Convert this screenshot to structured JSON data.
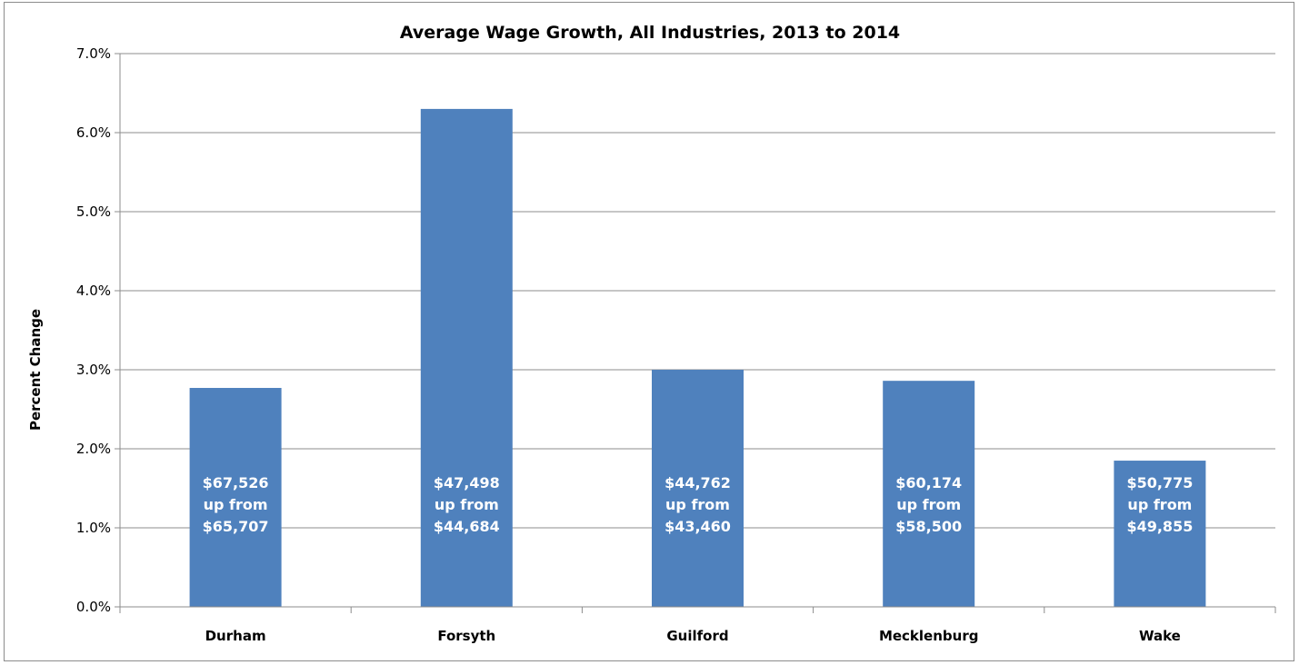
{
  "chart_data": {
    "type": "bar",
    "title": "Average Wage Growth, All Industries, 2013 to 2014",
    "xlabel": "",
    "ylabel": "Percent Change",
    "ylim": [
      0,
      7
    ],
    "yticks": [
      "0.0%",
      "1.0%",
      "2.0%",
      "3.0%",
      "4.0%",
      "5.0%",
      "6.0%",
      "7.0%"
    ],
    "grid": true,
    "legend": "none",
    "bar_color": "#4f81bd",
    "categories": [
      "Durham",
      "Forsyth",
      "Guilford",
      "Mecklenburg",
      "Wake"
    ],
    "values": [
      2.77,
      6.3,
      3.0,
      2.86,
      1.85
    ],
    "data_labels": [
      [
        "$67,526",
        "up from",
        "$65,707"
      ],
      [
        "$47,498",
        "up from",
        "$44,684"
      ],
      [
        "$44,762",
        "up from",
        "$43,460"
      ],
      [
        "$60,174",
        "up from",
        "$58,500"
      ],
      [
        "$50,775",
        "up from",
        "$49,855"
      ]
    ]
  }
}
